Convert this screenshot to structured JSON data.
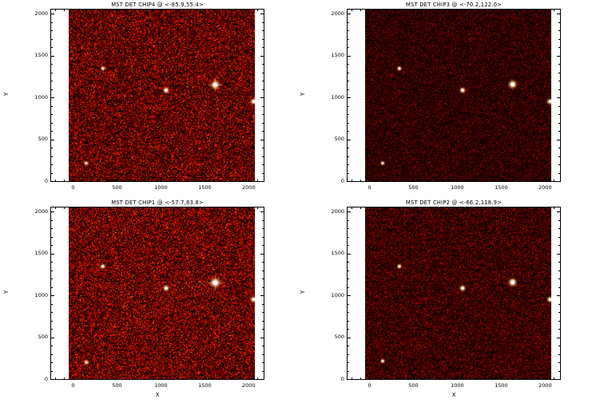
{
  "figure": {
    "background": "#ffffff",
    "frame_color": "#000000",
    "text_color": "#000000"
  },
  "chart_data": [
    {
      "type": "heatmap",
      "title": "MST DET CHIP4  @ <-85.9,55.4>",
      "xlabel": "",
      "ylabel": "Y",
      "axes": {
        "xlim": [
          -250,
          2170
        ],
        "ylim": [
          0,
          2048
        ],
        "xticks": [
          "0",
          "500",
          "1000",
          "1500",
          "2000"
        ],
        "yticks": [
          "0",
          "500",
          "1000",
          "1500",
          "2000"
        ],
        "xtick_values": [
          0,
          500,
          1000,
          1500,
          2000
        ],
        "ytick_values": [
          0,
          500,
          1000,
          1500,
          2000
        ],
        "minor_tick_step": 100,
        "grid": false
      },
      "image": {
        "background": "#1a0000",
        "noise_level": 1.15,
        "hot_pixels": true,
        "seed": 41
      },
      "stars": [
        {
          "x": 340,
          "y": 1345,
          "r": 1.7,
          "b": 0.95
        },
        {
          "x": 1060,
          "y": 1085,
          "r": 2.2,
          "b": 1.0
        },
        {
          "x": 1620,
          "y": 1150,
          "r": 3.2,
          "b": 1.0
        },
        {
          "x": 2055,
          "y": 950,
          "r": 2.2,
          "b": 1.0
        },
        {
          "x": 150,
          "y": 215,
          "r": 1.6,
          "b": 0.9
        }
      ]
    },
    {
      "type": "heatmap",
      "title": "MST DET CHIP3  @ <-70.2,122.0>",
      "xlabel": "",
      "ylabel": "Y",
      "axes": {
        "xlim": [
          -250,
          2170
        ],
        "ylim": [
          0,
          2048
        ],
        "xticks": [
          "0",
          "500",
          "1000",
          "1500",
          "2000"
        ],
        "yticks": [
          "0",
          "500",
          "1000",
          "1500",
          "2000"
        ],
        "xtick_values": [
          0,
          500,
          1000,
          1500,
          2000
        ],
        "ytick_values": [
          0,
          500,
          1000,
          1500,
          2000
        ],
        "minor_tick_step": 100,
        "grid": false
      },
      "image": {
        "background": "#140000",
        "noise_level": 0.5,
        "hot_pixels": false,
        "seed": 32
      },
      "stars": [
        {
          "x": 340,
          "y": 1345,
          "r": 1.7,
          "b": 0.95
        },
        {
          "x": 1060,
          "y": 1085,
          "r": 2.1,
          "b": 1.0
        },
        {
          "x": 1630,
          "y": 1155,
          "r": 3.0,
          "b": 1.0
        },
        {
          "x": 2055,
          "y": 950,
          "r": 2.1,
          "b": 1.0
        },
        {
          "x": 150,
          "y": 215,
          "r": 1.6,
          "b": 0.9
        }
      ]
    },
    {
      "type": "heatmap",
      "title": "MST DET CHIP1  @ <-57.7,83.8>",
      "xlabel": "X",
      "ylabel": "Y",
      "axes": {
        "xlim": [
          -250,
          2170
        ],
        "ylim": [
          0,
          2048
        ],
        "xticks": [
          "0",
          "500",
          "1000",
          "1500",
          "2000"
        ],
        "yticks": [
          "0",
          "500",
          "1000",
          "1500",
          "2000"
        ],
        "xtick_values": [
          0,
          500,
          1000,
          1500,
          2000
        ],
        "ytick_values": [
          0,
          500,
          1000,
          1500,
          2000
        ],
        "minor_tick_step": 100,
        "grid": false
      },
      "image": {
        "background": "#1a0000",
        "noise_level": 1.25,
        "hot_pixels": true,
        "seed": 13
      },
      "stars": [
        {
          "x": 340,
          "y": 1345,
          "r": 1.8,
          "b": 0.95
        },
        {
          "x": 1060,
          "y": 1085,
          "r": 2.2,
          "b": 1.0
        },
        {
          "x": 1620,
          "y": 1150,
          "r": 3.6,
          "b": 1.0
        },
        {
          "x": 2055,
          "y": 950,
          "r": 2.2,
          "b": 1.0
        },
        {
          "x": 150,
          "y": 200,
          "r": 1.7,
          "b": 0.9
        }
      ]
    },
    {
      "type": "heatmap",
      "title": "MST DET CHIP2  @ <-66.2,118.9>",
      "xlabel": "X",
      "ylabel": "Y",
      "axes": {
        "xlim": [
          -250,
          2170
        ],
        "ylim": [
          0,
          2048
        ],
        "xticks": [
          "0",
          "500",
          "1000",
          "1500",
          "2000"
        ],
        "yticks": [
          "0",
          "500",
          "1000",
          "1500",
          "2000"
        ],
        "xtick_values": [
          0,
          500,
          1000,
          1500,
          2000
        ],
        "ytick_values": [
          0,
          500,
          1000,
          1500,
          2000
        ],
        "minor_tick_step": 100,
        "grid": false
      },
      "image": {
        "background": "#160000",
        "noise_level": 0.65,
        "hot_pixels": false,
        "seed": 24
      },
      "stars": [
        {
          "x": 340,
          "y": 1345,
          "r": 1.7,
          "b": 0.95
        },
        {
          "x": 1060,
          "y": 1085,
          "r": 2.1,
          "b": 1.0
        },
        {
          "x": 1630,
          "y": 1155,
          "r": 3.0,
          "b": 1.0
        },
        {
          "x": 2055,
          "y": 950,
          "r": 2.1,
          "b": 1.0
        },
        {
          "x": 150,
          "y": 215,
          "r": 1.6,
          "b": 0.9
        }
      ]
    }
  ]
}
